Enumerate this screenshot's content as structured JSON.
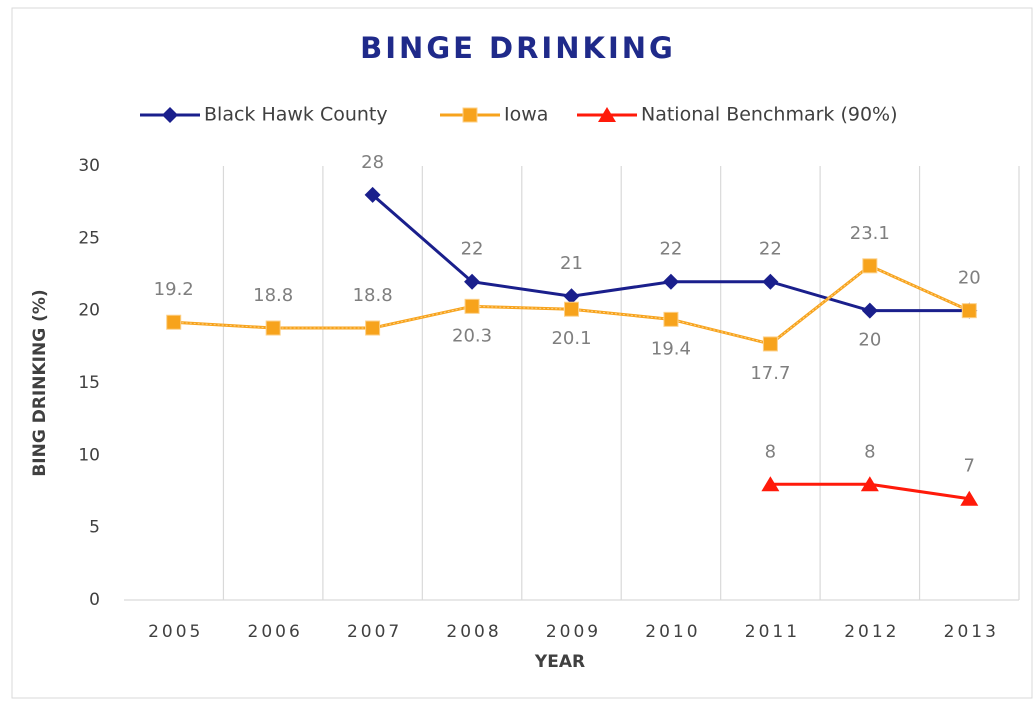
{
  "chart_data": {
    "type": "line",
    "title": "BINGE DRINKING",
    "x_label": "YEAR",
    "y_label": "BING DRINKING (%)",
    "categories": [
      "2005",
      "2006",
      "2007",
      "2008",
      "2009",
      "2010",
      "2011",
      "2012",
      "2013"
    ],
    "series": [
      {
        "name": "Black Hawk County",
        "color": "#1a1f8c",
        "marker": "diamond",
        "values": [
          null,
          null,
          28,
          22,
          21,
          22,
          22,
          20,
          20
        ],
        "value_labels": [
          null,
          null,
          "28",
          "22",
          "21",
          "22",
          "22",
          "20",
          null
        ]
      },
      {
        "name": "Iowa",
        "color": "#f7a31c",
        "marker": "square",
        "values": [
          19.2,
          18.8,
          18.8,
          20.3,
          20.1,
          19.4,
          17.7,
          23.1,
          20
        ]
      },
      {
        "name": "National Benchmark (90%)",
        "color": "#ff1a0a",
        "marker": "triangle",
        "values": [
          null,
          null,
          null,
          null,
          null,
          null,
          8,
          8,
          7
        ]
      }
    ],
    "ylim": [
      0,
      30
    ],
    "yticks": [
      0,
      5,
      10,
      15,
      20,
      25,
      30
    ],
    "grid": "x",
    "legend": "top"
  }
}
